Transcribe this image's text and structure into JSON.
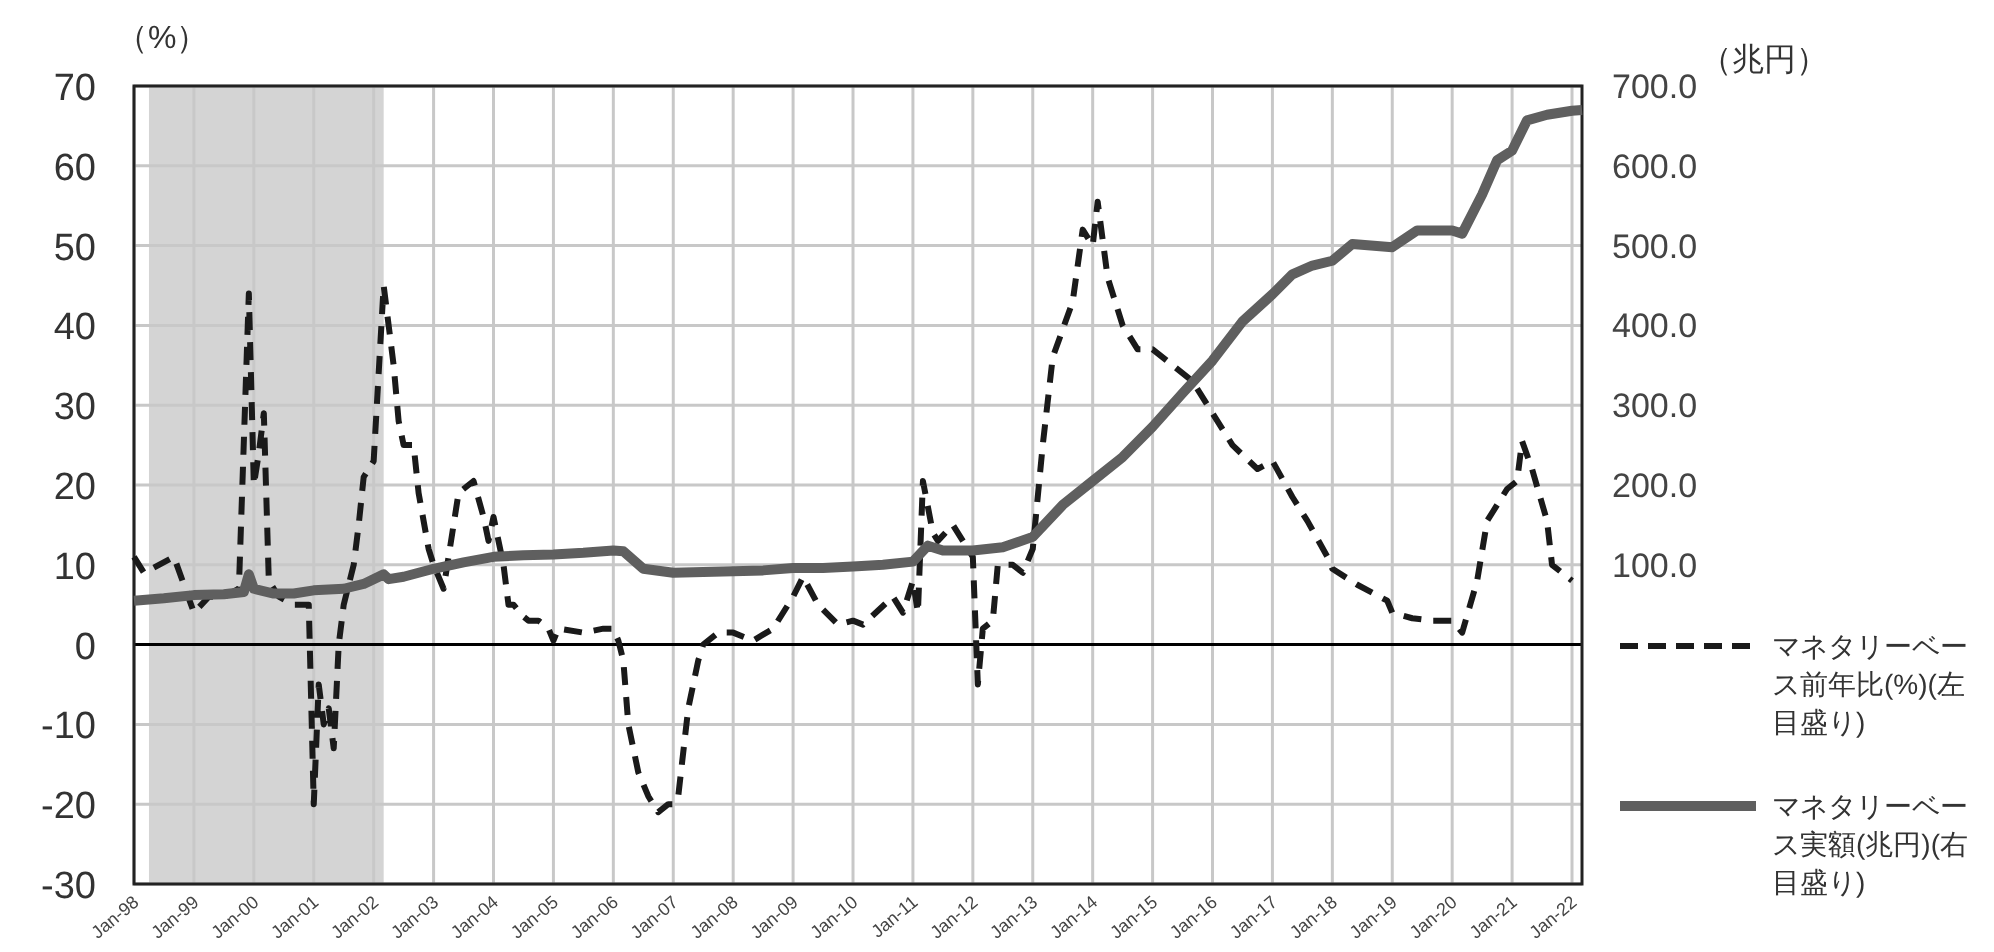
{
  "chart_data": {
    "type": "line",
    "ylabel": "（%）",
    "y2label": "（兆円）",
    "ylim": [
      -30,
      70
    ],
    "yticks": [
      -30,
      -20,
      -10,
      0,
      10,
      20,
      30,
      40,
      50,
      60,
      70
    ],
    "y2lim": [
      -300,
      700
    ],
    "y2ticks": [
      {
        "value": 100,
        "label": "100.0"
      },
      {
        "value": 200,
        "label": "200.0"
      },
      {
        "value": 300,
        "label": "300.0"
      },
      {
        "value": 400,
        "label": "400.0"
      },
      {
        "value": 500,
        "label": "500.0"
      },
      {
        "value": 600,
        "label": "600.0"
      },
      {
        "value": 700,
        "label": "700.0"
      }
    ],
    "xlim": [
      "1998-01",
      "2022-03"
    ],
    "xticks": [
      {
        "value": "1998-01",
        "label": "Jan-98"
      },
      {
        "value": "1999-01",
        "label": "Jan-99"
      },
      {
        "value": "2000-01",
        "label": "Jan-00"
      },
      {
        "value": "2001-01",
        "label": "Jan-01"
      },
      {
        "value": "2002-01",
        "label": "Jan-02"
      },
      {
        "value": "2003-01",
        "label": "Jan-03"
      },
      {
        "value": "2004-01",
        "label": "Jan-04"
      },
      {
        "value": "2005-01",
        "label": "Jan-05"
      },
      {
        "value": "2006-01",
        "label": "Jan-06"
      },
      {
        "value": "2007-01",
        "label": "Jan-07"
      },
      {
        "value": "2008-01",
        "label": "Jan-08"
      },
      {
        "value": "2009-01",
        "label": "Jan-09"
      },
      {
        "value": "2010-01",
        "label": "Jan-10"
      },
      {
        "value": "2011-01",
        "label": "Jan-11"
      },
      {
        "value": "2012-01",
        "label": "Jan-12"
      },
      {
        "value": "2013-01",
        "label": "Jan-13"
      },
      {
        "value": "2014-01",
        "label": "Jan-14"
      },
      {
        "value": "2015-01",
        "label": "Jan-15"
      },
      {
        "value": "2016-01",
        "label": "Jan-16"
      },
      {
        "value": "2017-01",
        "label": "Jan-17"
      },
      {
        "value": "2018-01",
        "label": "Jan-18"
      },
      {
        "value": "2019-01",
        "label": "Jan-19"
      },
      {
        "value": "2020-01",
        "label": "Jan-20"
      },
      {
        "value": "2021-01",
        "label": "Jan-21"
      },
      {
        "value": "2022-01",
        "label": "Jan-22"
      }
    ],
    "grid": true,
    "legend": "right",
    "marker": "none",
    "bands": [
      {
        "axis": "x",
        "from": "1998-04",
        "to": "2002-03",
        "color": "#d4d4d4"
      }
    ],
    "ref_lines": [
      {
        "axis": "y",
        "value": 0,
        "color": "#000000"
      }
    ],
    "series": [
      {
        "name": "マネタリーベース前年比(%)(左目盛り)",
        "color": "#1a1a1a",
        "line_style": "dashed",
        "x": [
          "1998-01",
          "1998-03",
          "1998-06",
          "1998-09",
          "1999-01",
          "1999-04",
          "1999-07",
          "1999-10",
          "1999-12",
          "2000-01",
          "2000-02",
          "2000-03",
          "2000-04",
          "2000-06",
          "2000-09",
          "2000-12",
          "2001-01",
          "2001-02",
          "2001-03",
          "2001-04",
          "2001-05",
          "2001-06",
          "2001-07",
          "2001-09",
          "2001-10",
          "2001-11",
          "2002-01",
          "2002-03",
          "2002-04",
          "2002-05",
          "2002-06",
          "2002-07",
          "2002-09",
          "2002-10",
          "2002-12",
          "2003-01",
          "2003-03",
          "2003-05",
          "2003-06",
          "2003-09",
          "2003-11",
          "2003-12",
          "2004-01",
          "2004-03",
          "2004-04",
          "2004-05",
          "2004-07",
          "2004-08",
          "2004-10",
          "2004-12",
          "2005-01",
          "2005-02",
          "2005-07",
          "2005-11",
          "2006-01",
          "2006-02",
          "2006-03",
          "2006-04",
          "2006-06",
          "2006-08",
          "2006-10",
          "2006-12",
          "2007-01",
          "2007-02",
          "2007-04",
          "2007-06",
          "2007-07",
          "2007-09",
          "2007-10",
          "2008-01",
          "2008-05",
          "2008-09",
          "2009-01",
          "2009-03",
          "2009-06",
          "2009-10",
          "2010-01",
          "2010-03",
          "2010-09",
          "2010-11",
          "2011-01",
          "2011-02",
          "2011-03",
          "2011-05",
          "2011-06",
          "2011-09",
          "2011-11",
          "2012-01",
          "2012-02",
          "2012-03",
          "2012-05",
          "2012-06",
          "2012-09",
          "2012-11",
          "2013-01",
          "2013-03",
          "2013-05",
          "2013-09",
          "2013-11",
          "2014-01",
          "2014-02",
          "2014-04",
          "2014-07",
          "2014-10",
          "2015-01",
          "2015-05",
          "2015-09",
          "2016-01",
          "2016-05",
          "2016-10",
          "2017-01",
          "2017-05",
          "2017-08",
          "2017-12",
          "2018-01",
          "2018-06",
          "2018-12",
          "2019-01",
          "2019-05",
          "2019-09",
          "2020-01",
          "2020-03",
          "2020-06",
          "2020-08",
          "2020-12",
          "2021-02",
          "2021-03",
          "2021-05",
          "2021-08",
          "2021-09",
          "2022-01"
        ],
        "values": [
          11,
          9,
          10,
          11,
          4,
          6,
          6,
          7,
          44,
          20,
          24,
          29,
          8,
          6,
          5,
          5,
          -20,
          -5,
          -10,
          -8,
          -13,
          0,
          5,
          10,
          15,
          21,
          23,
          45,
          40,
          35,
          28,
          25,
          25,
          19,
          12,
          10,
          7,
          15,
          19,
          20.5,
          16,
          13,
          16,
          10,
          5,
          5,
          3.5,
          3,
          3,
          2,
          0.5,
          2,
          1.5,
          2,
          2,
          0.5,
          -2,
          -10,
          -16,
          -19,
          -21,
          -20,
          -20,
          -19,
          -8,
          -2,
          0,
          1,
          1.5,
          1.5,
          0.5,
          2,
          6,
          8.5,
          5,
          2.5,
          3,
          2.5,
          6,
          4,
          8,
          4,
          20.5,
          14,
          13,
          15,
          13,
          11,
          -5,
          2,
          3,
          10,
          10,
          9,
          12,
          25,
          36,
          43,
          52,
          50,
          55.5,
          46,
          40,
          37,
          37,
          35,
          33,
          29,
          25,
          22,
          23,
          18.5,
          15.5,
          11,
          9.5,
          7.5,
          5.5,
          4,
          3.3,
          3,
          3,
          1.5,
          8,
          15.5,
          19.5,
          20.5,
          25.5,
          22,
          15.5,
          10,
          8
        ]
      },
      {
        "name": "マネタリーベース実額(兆円)(右目盛り)",
        "color": "#5f5f5f",
        "line_style": "solid",
        "axis": "y2",
        "x": [
          "1998-01",
          "1998-07",
          "1999-01",
          "1999-07",
          "1999-11",
          "1999-12",
          "2000-01",
          "2000-05",
          "2000-09",
          "2001-01",
          "2001-07",
          "2001-11",
          "2002-03",
          "2002-04",
          "2002-07",
          "2003-01",
          "2003-07",
          "2004-01",
          "2004-07",
          "2005-01",
          "2005-07",
          "2006-01",
          "2006-03",
          "2006-07",
          "2007-01",
          "2007-07",
          "2008-01",
          "2008-07",
          "2009-01",
          "2009-07",
          "2010-01",
          "2010-07",
          "2011-01",
          "2011-04",
          "2011-07",
          "2012-01",
          "2012-07",
          "2013-01",
          "2013-07",
          "2014-01",
          "2014-07",
          "2015-01",
          "2015-07",
          "2016-01",
          "2016-07",
          "2017-01",
          "2017-05",
          "2017-09",
          "2018-01",
          "2018-05",
          "2019-01",
          "2019-06",
          "2020-01",
          "2020-03",
          "2020-07",
          "2020-10",
          "2021-01",
          "2021-04",
          "2021-08",
          "2022-01",
          "2022-03"
        ],
        "values": [
          55,
          58,
          62,
          63,
          66,
          88,
          70,
          64,
          64,
          68,
          70,
          76,
          88,
          82,
          85,
          95,
          103,
          110,
          112,
          113,
          115,
          118,
          117,
          95,
          90,
          91,
          92,
          93,
          96,
          96,
          98,
          100,
          104,
          124,
          118,
          118,
          122,
          135,
          175,
          205,
          235,
          273,
          315,
          356,
          405,
          439,
          464,
          475,
          481,
          502,
          498,
          519,
          519,
          515,
          564,
          607,
          619,
          657,
          664,
          669,
          670
        ]
      }
    ]
  }
}
